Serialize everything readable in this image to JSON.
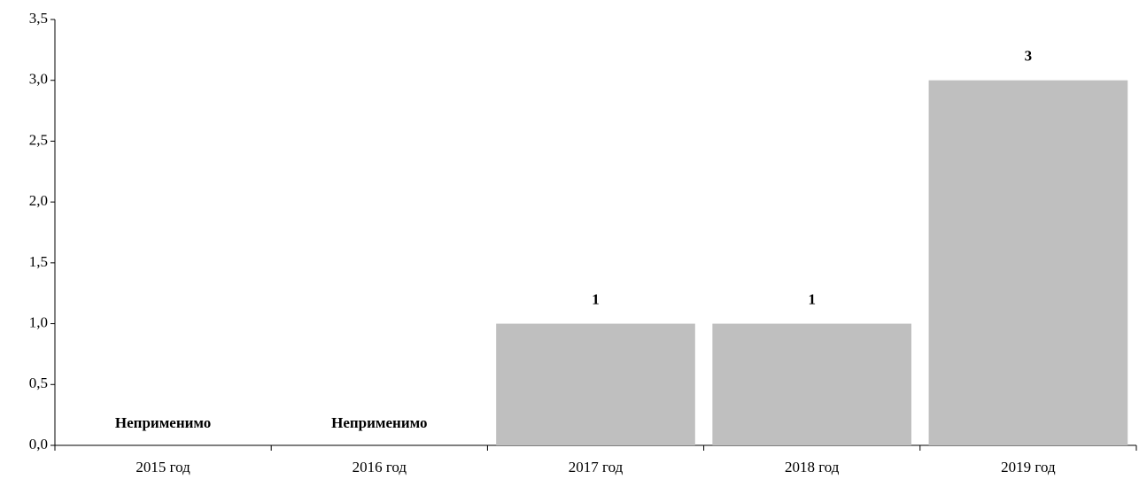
{
  "chart_data": {
    "type": "bar",
    "categories": [
      "2015 год",
      "2016 год",
      "2017 год",
      "2018 год",
      "2019 год"
    ],
    "values": [
      null,
      null,
      1,
      1,
      3
    ],
    "value_labels": [
      "Неприменимо",
      "Неприменимо",
      "1",
      "1",
      "3"
    ],
    "color": "#bfbfbf",
    "ylim": [
      0,
      3.5
    ],
    "yticks": [
      {
        "value": 0,
        "label": "0,0"
      },
      {
        "value": 0.5,
        "label": "0,5"
      },
      {
        "value": 1,
        "label": "1,0"
      },
      {
        "value": 1.5,
        "label": "1,5"
      },
      {
        "value": 2,
        "label": "2,0"
      },
      {
        "value": 2.5,
        "label": "2,5"
      },
      {
        "value": 3,
        "label": "3,0"
      },
      {
        "value": 3.5,
        "label": "3,5"
      }
    ],
    "grid": false
  }
}
